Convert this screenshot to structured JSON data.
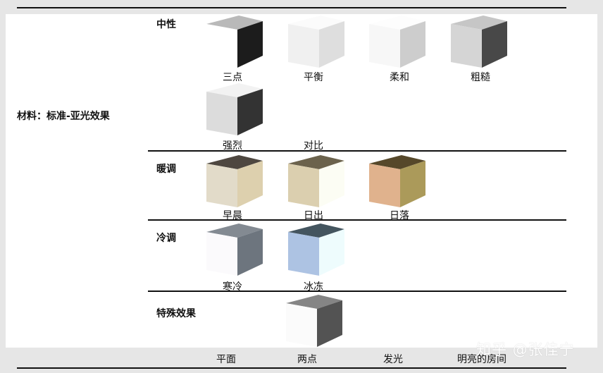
{
  "material_label": "材料：标准-亚光效果",
  "groups": {
    "neutral": {
      "title": "中性",
      "items": [
        {
          "label": "三点",
          "top": "#b9b9b9",
          "front": "#ffffff",
          "side": "#1c1c1c"
        },
        {
          "label": "平衡",
          "top": "#fbfbfb",
          "front": "#f0f0f0",
          "side": "#dedede"
        },
        {
          "label": "柔和",
          "top": "#fdfdfd",
          "front": "#f7f7f7",
          "side": "#cdcdcd"
        },
        {
          "label": "粗糙",
          "top": "#c6c6c6",
          "front": "#d5d5d5",
          "side": "#484848"
        },
        {
          "label": "强烈",
          "top": "#f2f2f2",
          "front": "#dcdcdc",
          "side": "#333333"
        },
        {
          "label": "对比",
          "top": "#ffffff",
          "front": "#ffffff",
          "side": "#ffffff"
        }
      ]
    },
    "warm": {
      "title": "暖调",
      "items": [
        {
          "label": "早晨",
          "top": "#4e4740",
          "front": "#e2dbc9",
          "side": "#ddd0ae"
        },
        {
          "label": "日出",
          "top": "#6b624c",
          "front": "#dbcfaf",
          "side": "#fcfdf4"
        },
        {
          "label": "日落",
          "top": "#56482a",
          "front": "#e0b28d",
          "side": "#ab9a5a"
        }
      ]
    },
    "cool": {
      "title": "冷调",
      "items": [
        {
          "label": "寒冷",
          "top": "#838a92",
          "front": "#fbfafc",
          "side": "#6d757e"
        },
        {
          "label": "冰冻",
          "top": "#44555f",
          "front": "#adc3e3",
          "side": "#eefcfd"
        }
      ]
    },
    "special": {
      "title": "特殊效果",
      "items": [
        {
          "label": "平面",
          "top": "#ffffff",
          "front": "#ffffff",
          "side": "#ffffff"
        },
        {
          "label": "两点",
          "top": "#858585",
          "front": "#fbfbfb",
          "side": "#535353"
        },
        {
          "label": "发光",
          "top": "#ffffff",
          "front": "#ffffff",
          "side": "#ffffff"
        },
        {
          "label": "明亮的房间",
          "top": "#ffffff",
          "front": "#ffffff",
          "side": "#ffffff"
        }
      ]
    }
  },
  "watermark": "知乎 @张佳宁"
}
